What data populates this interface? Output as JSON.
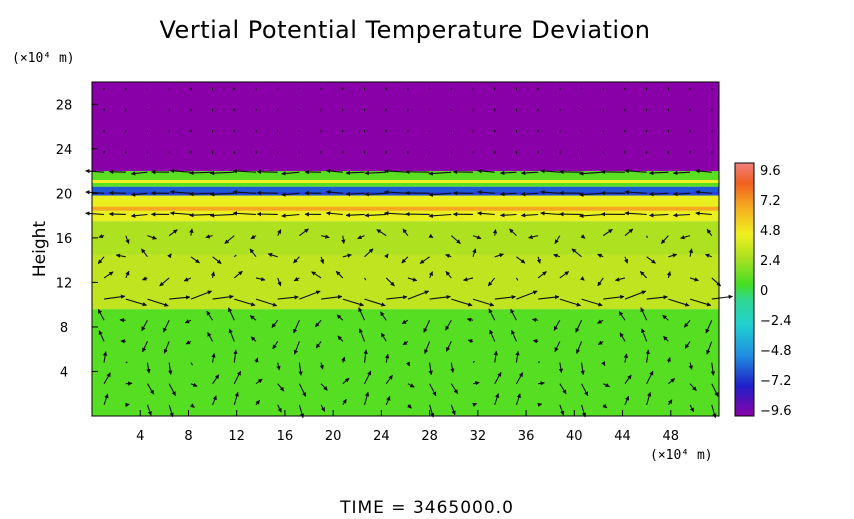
{
  "chart_data": {
    "type": "heatmap",
    "title": "Vertial Potential Temperature Deviation",
    "xlabel": "",
    "ylabel": "Height",
    "x_unit_label": "(×10⁴ m)",
    "y_unit_label": "(×10⁴ m)",
    "xlim": [
      0,
      52
    ],
    "ylim": [
      0,
      30
    ],
    "x_ticks": [
      4,
      8,
      12,
      16,
      20,
      24,
      28,
      32,
      36,
      40,
      44,
      48
    ],
    "y_ticks": [
      4,
      8,
      12,
      16,
      20,
      24,
      28
    ],
    "colorbar": {
      "range": [
        -9.6,
        9.6
      ],
      "ticks": [
        "9.6",
        "7.2",
        "4.8",
        "2.4",
        "0",
        "−2.4",
        "−4.8",
        "−7.2",
        "−9.6"
      ]
    },
    "layers": [
      {
        "y_from": 0,
        "y_to": 9.6,
        "value": 0.4,
        "description_value": "near zero"
      },
      {
        "y_from": 9.6,
        "y_to": 14.5,
        "value": 3.2
      },
      {
        "y_from": 14.5,
        "y_to": 17.5,
        "value": 2.6
      },
      {
        "y_from": 17.5,
        "y_to": 19.8,
        "value": 4.6
      },
      {
        "y_from": 19.8,
        "y_to": 20.6,
        "value": -6.0
      },
      {
        "y_from": 20.6,
        "y_to": 22.0,
        "value": 0.5
      },
      {
        "y_from": 22.0,
        "y_to": 30,
        "value": -9.6
      }
    ],
    "vector_field": "wind vectors plotted over domain",
    "footer": "TIME  =  3465000.0"
  }
}
